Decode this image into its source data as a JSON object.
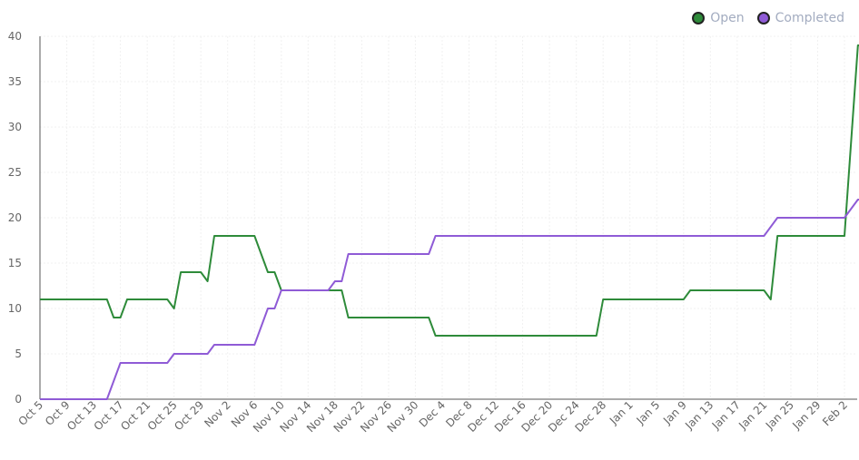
{
  "chart_data": {
    "type": "line",
    "title": "",
    "xlabel": "",
    "ylabel": "",
    "ylim": [
      0,
      40
    ],
    "yticks": [
      0,
      5,
      10,
      15,
      20,
      25,
      30,
      35,
      40
    ],
    "grid": true,
    "legend_position": "top-right",
    "x_tick_labels": [
      "Oct 5",
      "Oct 9",
      "Oct 13",
      "Oct 17",
      "Oct 21",
      "Oct 25",
      "Oct 29",
      "Nov 2",
      "Nov 6",
      "Nov 10",
      "Nov 14",
      "Nov 18",
      "Nov 22",
      "Nov 26",
      "Nov 30",
      "Dec 4",
      "Dec 8",
      "Dec 12",
      "Dec 16",
      "Dec 20",
      "Dec 24",
      "Dec 28",
      "Jan 1",
      "Jan 5",
      "Jan 9",
      "Jan 13",
      "Jan 17",
      "Jan 21",
      "Jan 25",
      "Jan 29",
      "Feb 2"
    ],
    "series": [
      {
        "name": "Open",
        "color": "#2e8b3a",
        "points": [
          [
            "Oct 5",
            11
          ],
          [
            "Oct 15",
            11
          ],
          [
            "Oct 16",
            9
          ],
          [
            "Oct 17",
            9
          ],
          [
            "Oct 18",
            11
          ],
          [
            "Oct 24",
            11
          ],
          [
            "Oct 25",
            10
          ],
          [
            "Oct 26",
            14
          ],
          [
            "Oct 29",
            14
          ],
          [
            "Oct 30",
            13
          ],
          [
            "Oct 31",
            18
          ],
          [
            "Nov 6",
            18
          ],
          [
            "Nov 8",
            14
          ],
          [
            "Nov 9",
            14
          ],
          [
            "Nov 10",
            12
          ],
          [
            "Nov 19",
            12
          ],
          [
            "Nov 20",
            9
          ],
          [
            "Dec 2",
            9
          ],
          [
            "Dec 3",
            7
          ],
          [
            "Dec 27",
            7
          ],
          [
            "Dec 28",
            11
          ],
          [
            "Jan 9",
            11
          ],
          [
            "Jan 10",
            12
          ],
          [
            "Jan 21",
            12
          ],
          [
            "Jan 22",
            11
          ],
          [
            "Jan 23",
            18
          ],
          [
            "Feb 2",
            18
          ],
          [
            "Feb 4",
            39
          ],
          [
            "Feb 6",
            39
          ]
        ]
      },
      {
        "name": "Completed",
        "color": "#8f5bd6",
        "points": [
          [
            "Oct 5",
            0
          ],
          [
            "Oct 15",
            0
          ],
          [
            "Oct 17",
            4
          ],
          [
            "Oct 24",
            4
          ],
          [
            "Oct 25",
            5
          ],
          [
            "Oct 30",
            5
          ],
          [
            "Oct 31",
            6
          ],
          [
            "Nov 6",
            6
          ],
          [
            "Nov 8",
            10
          ],
          [
            "Nov 9",
            10
          ],
          [
            "Nov 10",
            12
          ],
          [
            "Nov 17",
            12
          ],
          [
            "Nov 18",
            13
          ],
          [
            "Nov 19",
            13
          ],
          [
            "Nov 20",
            16
          ],
          [
            "Dec 2",
            16
          ],
          [
            "Dec 3",
            18
          ],
          [
            "Jan 21",
            18
          ],
          [
            "Jan 23",
            20
          ],
          [
            "Feb 2",
            20
          ],
          [
            "Feb 4",
            22
          ],
          [
            "Feb 6",
            22
          ]
        ]
      }
    ]
  },
  "legend": {
    "open_label": "Open",
    "completed_label": "Completed"
  }
}
